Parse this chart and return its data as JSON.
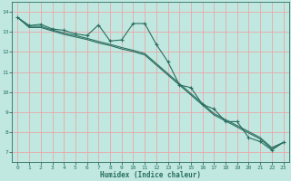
{
  "xlabel": "Humidex (Indice chaleur)",
  "bg_color": "#c0e8e0",
  "grid_color": "#e8a8a8",
  "line_color": "#2a6e60",
  "xlim": [
    -0.5,
    23.5
  ],
  "ylim": [
    6.5,
    14.5
  ],
  "xticks": [
    0,
    1,
    2,
    3,
    4,
    5,
    6,
    7,
    8,
    9,
    10,
    11,
    12,
    13,
    14,
    15,
    16,
    17,
    18,
    19,
    20,
    21,
    22,
    23
  ],
  "yticks": [
    7,
    8,
    9,
    10,
    11,
    12,
    13,
    14
  ],
  "series1": [
    [
      0,
      13.72
    ],
    [
      1,
      13.32
    ],
    [
      2,
      13.38
    ],
    [
      3,
      13.15
    ],
    [
      4,
      13.08
    ],
    [
      5,
      12.9
    ],
    [
      6,
      12.82
    ],
    [
      7,
      13.35
    ],
    [
      8,
      12.55
    ],
    [
      9,
      12.6
    ],
    [
      10,
      13.42
    ],
    [
      11,
      13.42
    ],
    [
      12,
      12.38
    ],
    [
      13,
      11.52
    ],
    [
      14,
      10.35
    ],
    [
      15,
      10.22
    ],
    [
      16,
      9.38
    ],
    [
      17,
      9.15
    ],
    [
      18,
      8.52
    ],
    [
      19,
      8.52
    ],
    [
      20,
      7.72
    ],
    [
      21,
      7.52
    ],
    [
      22,
      7.1
    ],
    [
      23,
      7.48
    ]
  ],
  "series2": [
    [
      0,
      13.72
    ],
    [
      1,
      13.28
    ],
    [
      2,
      13.28
    ],
    [
      3,
      13.1
    ],
    [
      4,
      12.95
    ],
    [
      5,
      12.82
    ],
    [
      6,
      12.68
    ],
    [
      7,
      12.52
    ],
    [
      8,
      12.38
    ],
    [
      9,
      12.22
    ],
    [
      10,
      12.08
    ],
    [
      11,
      11.92
    ],
    [
      12,
      11.42
    ],
    [
      13,
      10.92
    ],
    [
      14,
      10.42
    ],
    [
      15,
      9.92
    ],
    [
      16,
      9.42
    ],
    [
      17,
      8.92
    ],
    [
      18,
      8.62
    ],
    [
      19,
      8.32
    ],
    [
      20,
      8.02
    ],
    [
      21,
      7.72
    ],
    [
      22,
      7.22
    ],
    [
      23,
      7.48
    ]
  ],
  "series3": [
    [
      0,
      13.72
    ],
    [
      1,
      13.22
    ],
    [
      2,
      13.22
    ],
    [
      3,
      13.05
    ],
    [
      4,
      12.88
    ],
    [
      5,
      12.75
    ],
    [
      6,
      12.62
    ],
    [
      7,
      12.45
    ],
    [
      8,
      12.32
    ],
    [
      9,
      12.15
    ],
    [
      10,
      12.02
    ],
    [
      11,
      11.85
    ],
    [
      12,
      11.35
    ],
    [
      13,
      10.85
    ],
    [
      14,
      10.35
    ],
    [
      15,
      9.85
    ],
    [
      16,
      9.35
    ],
    [
      17,
      8.85
    ],
    [
      18,
      8.55
    ],
    [
      19,
      8.25
    ],
    [
      20,
      7.95
    ],
    [
      21,
      7.65
    ],
    [
      22,
      7.15
    ],
    [
      23,
      7.48
    ]
  ]
}
